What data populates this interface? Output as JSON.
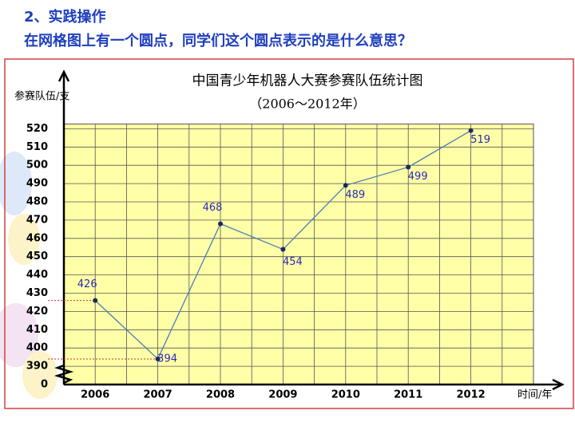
{
  "header": {
    "section": "2、实践操作",
    "question": "在网格图上有一个圆点，同学们这个圆点表示的是什么意思？"
  },
  "chart_data": {
    "type": "line",
    "title": "中国青少年机器人大赛参赛队伍统计图",
    "subtitle": "（2006～2012年）",
    "y_label": "参赛队伍/支",
    "x_label": "时间/年",
    "categories": [
      "2006",
      "2007",
      "2008",
      "2009",
      "2010",
      "2011",
      "2012"
    ],
    "series": [
      {
        "color": "#4a7fb5",
        "values": [
          426,
          394,
          468,
          454,
          489,
          499,
          519
        ]
      }
    ],
    "ylim": [
      0,
      520
    ],
    "yticks": [
      0,
      390,
      400,
      410,
      420,
      430,
      440,
      450,
      460,
      470,
      480,
      490,
      500,
      510,
      520
    ],
    "axis_break": true,
    "grid": true
  }
}
